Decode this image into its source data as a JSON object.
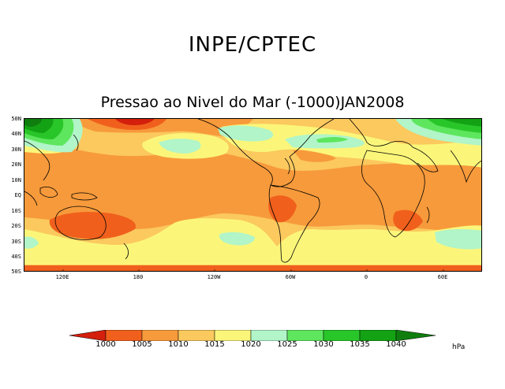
{
  "header": {
    "title": "INPE/CPTEC",
    "subtitle": "Pressao ao Nivel do Mar (-1000)JAN2008"
  },
  "map": {
    "lat_labels": [
      "50N",
      "40N",
      "30N",
      "20N",
      "10N",
      "EQ",
      "10S",
      "20S",
      "30S",
      "40S",
      "50S"
    ],
    "lon_labels": [
      "120E",
      "180",
      "120W",
      "60W",
      "0",
      "60E"
    ],
    "colors": {
      "lt1000": "#d31f0c",
      "r1000_1005": "#f0601c",
      "r1005_1010": "#f79a3b",
      "r1010_1015": "#fbc95e",
      "r1015_1020": "#fbf67a",
      "r1020_1025": "#b1f5c8",
      "r1025_1030": "#5ee65e",
      "r1030_1035": "#29c629",
      "r1035_1040": "#13a213",
      "gt1040": "#0f7e0f"
    }
  },
  "colorbar": {
    "labels": [
      "1000",
      "1005",
      "1010",
      "1015",
      "1020",
      "1025",
      "1030",
      "1035",
      "1040"
    ],
    "colors": [
      "#d31f0c",
      "#f0601c",
      "#f79a3b",
      "#fbc95e",
      "#fbf67a",
      "#b1f5c8",
      "#5ee65e",
      "#29c629",
      "#13a213",
      "#0f7e0f"
    ],
    "units": "hPa"
  }
}
